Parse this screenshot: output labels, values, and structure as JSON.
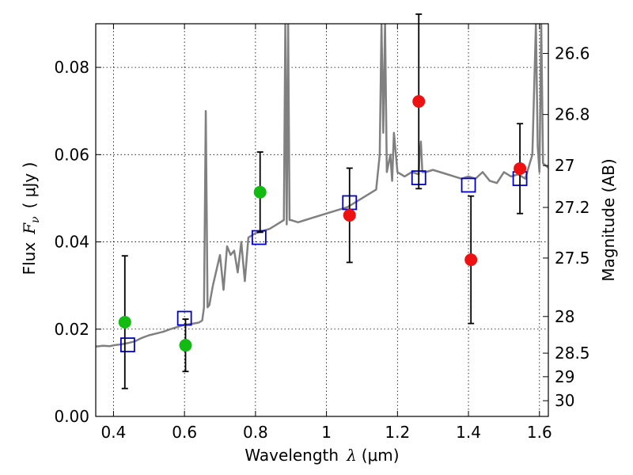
{
  "chart_data": {
    "type": "scatter",
    "xlabel": "Wavelength",
    "xlabel_symbol": "λ",
    "xlabel_unit": "(μm)",
    "ylabel": "Flux",
    "ylabel_symbol": "F",
    "ylabel_sub": "ν",
    "ylabel_unit": "( μJy )",
    "y2label": "Magnitude (AB)",
    "xlim": [
      0.35,
      1.625
    ],
    "ylim": [
      0.0,
      0.09
    ],
    "x_ticks": [
      0.4,
      0.6,
      0.8,
      1.0,
      1.2,
      1.4,
      1.6
    ],
    "x_tick_labels": [
      "0.4",
      "0.6",
      "0.8",
      "1",
      "1.2",
      "1.4",
      "1.6"
    ],
    "y_ticks": [
      0.0,
      0.02,
      0.04,
      0.06,
      0.08
    ],
    "y_tick_labels": [
      "0.00",
      "0.02",
      "0.04",
      "0.06",
      "0.08"
    ],
    "y2_ticks": [
      {
        "label": "26.6",
        "flux": 0.0832
      },
      {
        "label": "26.8",
        "flux": 0.0692
      },
      {
        "label": "27",
        "flux": 0.0575
      },
      {
        "label": "27.2",
        "flux": 0.0479
      },
      {
        "label": "27.5",
        "flux": 0.0363
      },
      {
        "label": "28",
        "flux": 0.0229
      },
      {
        "label": "28.5",
        "flux": 0.0145
      },
      {
        "label": "29",
        "flux": 0.0091
      },
      {
        "label": "30",
        "flux": 0.0036
      }
    ],
    "grid": true,
    "colors": {
      "spectrum": "#808080",
      "model": "#0000cc",
      "green": "#11bb11",
      "red": "#ee1111",
      "errorbar": "#000000"
    },
    "series": [
      {
        "kind": "spectrum",
        "x": [
          0.35,
          0.37,
          0.39,
          0.4,
          0.42,
          0.44,
          0.46,
          0.48,
          0.5,
          0.52,
          0.54,
          0.56,
          0.58,
          0.6,
          0.62,
          0.64,
          0.65,
          0.655,
          0.66,
          0.665,
          0.67,
          0.68,
          0.7,
          0.71,
          0.72,
          0.73,
          0.74,
          0.75,
          0.76,
          0.77,
          0.78,
          0.8,
          0.82,
          0.84,
          0.86,
          0.88,
          0.884,
          0.888,
          0.892,
          0.896,
          0.9,
          0.92,
          0.94,
          0.96,
          0.98,
          1.0,
          1.02,
          1.04,
          1.06,
          1.08,
          1.1,
          1.12,
          1.14,
          1.15,
          1.155,
          1.16,
          1.165,
          1.17,
          1.18,
          1.185,
          1.19,
          1.2,
          1.22,
          1.24,
          1.26,
          1.262,
          1.266,
          1.27,
          1.28,
          1.3,
          1.32,
          1.34,
          1.36,
          1.38,
          1.4,
          1.42,
          1.44,
          1.46,
          1.48,
          1.5,
          1.52,
          1.54,
          1.56,
          1.58,
          1.59,
          1.595,
          1.6,
          1.605,
          1.61,
          1.625
        ],
        "y": [
          0.016,
          0.0162,
          0.0161,
          0.0163,
          0.0165,
          0.0168,
          0.0172,
          0.018,
          0.0186,
          0.019,
          0.0194,
          0.02,
          0.0205,
          0.021,
          0.0212,
          0.0215,
          0.022,
          0.025,
          0.07,
          0.025,
          0.0255,
          0.03,
          0.037,
          0.029,
          0.039,
          0.037,
          0.038,
          0.033,
          0.04,
          0.031,
          0.041,
          0.042,
          0.0425,
          0.043,
          0.044,
          0.045,
          0.09,
          0.044,
          0.09,
          0.045,
          0.045,
          0.0445,
          0.045,
          0.0455,
          0.046,
          0.0465,
          0.047,
          0.0475,
          0.048,
          0.049,
          0.05,
          0.051,
          0.052,
          0.06,
          0.09,
          0.065,
          0.09,
          0.056,
          0.06,
          0.054,
          0.065,
          0.056,
          0.055,
          0.056,
          0.0555,
          0.06,
          0.063,
          0.056,
          0.056,
          0.0565,
          0.056,
          0.0555,
          0.055,
          0.0545,
          0.055,
          0.0545,
          0.056,
          0.054,
          0.0535,
          0.056,
          0.055,
          0.0555,
          0.0545,
          0.06,
          0.09,
          0.062,
          0.056,
          0.09,
          0.058,
          0.057
        ]
      },
      {
        "kind": "model-squares",
        "x": [
          0.44,
          0.6,
          0.81,
          1.065,
          1.26,
          1.4,
          1.545
        ],
        "y": [
          0.0164,
          0.0225,
          0.041,
          0.049,
          0.0547,
          0.053,
          0.0545
        ]
      },
      {
        "kind": "green-points",
        "x": [
          0.432,
          0.603,
          0.813
        ],
        "y": [
          0.0216,
          0.0163,
          0.0514
        ],
        "err": [
          0.0152,
          0.006,
          0.0092
        ]
      },
      {
        "kind": "red-points",
        "x": [
          1.065,
          1.26,
          1.407,
          1.545
        ],
        "y": [
          0.0461,
          0.0722,
          0.0359,
          0.0568
        ],
        "err": [
          0.0108,
          0.02,
          0.0146,
          0.0103
        ]
      }
    ]
  }
}
